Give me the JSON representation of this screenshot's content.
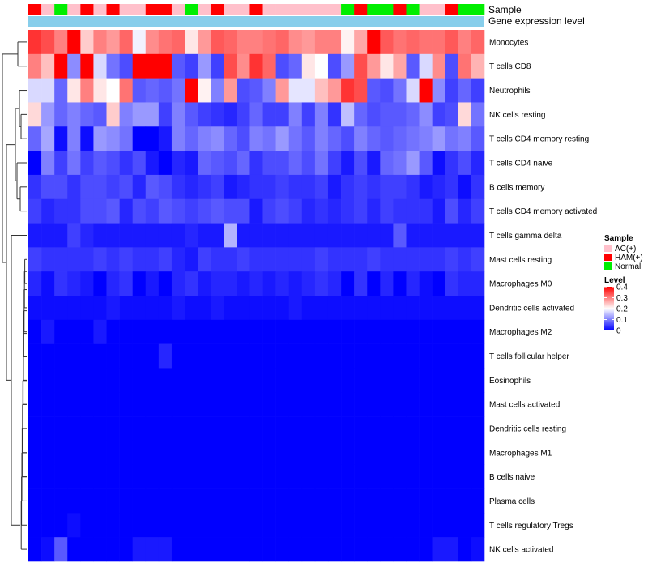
{
  "chart_data": {
    "type": "heatmap",
    "sample_label": "Sample",
    "gene_label": "Gene expression level",
    "rows": [
      "Monocytes",
      "T cells CD8",
      "Neutrophils",
      "NK cells resting",
      "T cells CD4 memory resting",
      "T cells CD4 naive",
      "B cells memory",
      "T cells CD4 memory activated",
      "T cells gamma delta",
      "Mast cells resting",
      "Macrophages M0",
      "Dendritic cells activated",
      "Macrophages M2",
      "T cells follicular helper",
      "Eosinophils",
      "Mast cells activated",
      "Dendritic cells resting",
      "Macrophages M1",
      "B cells naive",
      "Plasma cells",
      "T cells regulatory  Tregs",
      "NK cells activated"
    ],
    "samples": [
      "HAM(+)",
      "AC(+)",
      "Normal",
      "AC(+)",
      "HAM(+)",
      "AC(+)",
      "HAM(+)",
      "AC(+)",
      "AC(+)",
      "HAM(+)",
      "HAM(+)",
      "AC(+)",
      "Normal",
      "AC(+)",
      "HAM(+)",
      "AC(+)",
      "AC(+)",
      "HAM(+)",
      "AC(+)",
      "AC(+)",
      "AC(+)",
      "AC(+)",
      "AC(+)",
      "AC(+)",
      "Normal",
      "HAM(+)",
      "Normal",
      "Normal",
      "HAM(+)",
      "Normal",
      "AC(+)",
      "AC(+)",
      "HAM(+)",
      "Normal",
      "Normal"
    ],
    "values": [
      [
        0.36,
        0.34,
        0.3,
        0.4,
        0.24,
        0.3,
        0.28,
        0.32,
        0.19,
        0.29,
        0.31,
        0.32,
        0.22,
        0.28,
        0.33,
        0.32,
        0.3,
        0.3,
        0.31,
        0.32,
        0.29,
        0.28,
        0.3,
        0.3,
        0.21,
        0.27,
        0.4,
        0.33,
        0.31,
        0.32,
        0.31,
        0.31,
        0.33,
        0.3,
        0.32
      ],
      [
        0.3,
        0.25,
        0.4,
        0.11,
        0.4,
        0.17,
        0.09,
        0.06,
        0.4,
        0.4,
        0.4,
        0.07,
        0.05,
        0.12,
        0.05,
        0.34,
        0.29,
        0.36,
        0.32,
        0.06,
        0.08,
        0.22,
        0.2,
        0.06,
        0.12,
        0.34,
        0.28,
        0.22,
        0.27,
        0.07,
        0.17,
        0.29,
        0.06,
        0.31,
        0.26
      ],
      [
        0.17,
        0.17,
        0.08,
        0.22,
        0.3,
        0.22,
        0.2,
        0.31,
        0.07,
        0.08,
        0.07,
        0.09,
        0.4,
        0.21,
        0.1,
        0.28,
        0.06,
        0.07,
        0.1,
        0.28,
        0.18,
        0.18,
        0.25,
        0.28,
        0.36,
        0.34,
        0.07,
        0.06,
        0.09,
        0.17,
        0.4,
        0.11,
        0.05,
        0.08,
        0.05
      ],
      [
        0.23,
        0.12,
        0.08,
        0.1,
        0.08,
        0.07,
        0.24,
        0.1,
        0.12,
        0.12,
        0.05,
        0.1,
        0.07,
        0.05,
        0.04,
        0.03,
        0.05,
        0.08,
        0.05,
        0.05,
        0.1,
        0.05,
        0.1,
        0.04,
        0.15,
        0.08,
        0.06,
        0.07,
        0.07,
        0.08,
        0.11,
        0.05,
        0.06,
        0.23,
        0.09
      ],
      [
        0.08,
        0.13,
        0.01,
        0.1,
        0.01,
        0.12,
        0.11,
        0.09,
        0.0,
        0.0,
        0.02,
        0.1,
        0.08,
        0.1,
        0.11,
        0.08,
        0.06,
        0.1,
        0.09,
        0.12,
        0.09,
        0.07,
        0.1,
        0.08,
        0.06,
        0.1,
        0.08,
        0.07,
        0.08,
        0.09,
        0.1,
        0.12,
        0.09,
        0.1,
        0.07
      ],
      [
        0.0,
        0.1,
        0.05,
        0.09,
        0.05,
        0.07,
        0.06,
        0.04,
        0.06,
        0.02,
        0.0,
        0.03,
        0.02,
        0.08,
        0.07,
        0.06,
        0.08,
        0.04,
        0.06,
        0.06,
        0.08,
        0.06,
        0.09,
        0.05,
        0.02,
        0.06,
        0.02,
        0.08,
        0.09,
        0.12,
        0.07,
        0.01,
        0.04,
        0.06,
        0.03
      ],
      [
        0.04,
        0.06,
        0.06,
        0.04,
        0.06,
        0.06,
        0.05,
        0.06,
        0.03,
        0.07,
        0.06,
        0.04,
        0.03,
        0.04,
        0.05,
        0.02,
        0.03,
        0.04,
        0.04,
        0.05,
        0.04,
        0.04,
        0.05,
        0.02,
        0.04,
        0.05,
        0.04,
        0.05,
        0.05,
        0.04,
        0.02,
        0.03,
        0.04,
        0.01,
        0.04
      ],
      [
        0.05,
        0.03,
        0.04,
        0.04,
        0.06,
        0.06,
        0.07,
        0.03,
        0.06,
        0.05,
        0.07,
        0.06,
        0.05,
        0.06,
        0.07,
        0.06,
        0.06,
        0.02,
        0.05,
        0.06,
        0.05,
        0.03,
        0.04,
        0.03,
        0.04,
        0.05,
        0.03,
        0.05,
        0.04,
        0.04,
        0.04,
        0.02,
        0.06,
        0.03,
        0.05
      ],
      [
        0.02,
        0.02,
        0.02,
        0.05,
        0.03,
        0.02,
        0.02,
        0.02,
        0.02,
        0.02,
        0.02,
        0.02,
        0.03,
        0.02,
        0.02,
        0.14,
        0.02,
        0.02,
        0.02,
        0.02,
        0.02,
        0.02,
        0.02,
        0.02,
        0.02,
        0.02,
        0.02,
        0.02,
        0.07,
        0.02,
        0.02,
        0.02,
        0.02,
        0.02,
        0.02
      ],
      [
        0.05,
        0.04,
        0.04,
        0.04,
        0.04,
        0.05,
        0.04,
        0.05,
        0.04,
        0.04,
        0.05,
        0.03,
        0.02,
        0.05,
        0.04,
        0.04,
        0.05,
        0.04,
        0.04,
        0.04,
        0.04,
        0.04,
        0.05,
        0.04,
        0.04,
        0.04,
        0.05,
        0.04,
        0.04,
        0.04,
        0.04,
        0.04,
        0.05,
        0.04,
        0.05
      ],
      [
        0.03,
        0.01,
        0.04,
        0.03,
        0.02,
        0.0,
        0.03,
        0.04,
        0.0,
        0.02,
        0.0,
        0.03,
        0.04,
        0.02,
        0.03,
        0.03,
        0.02,
        0.03,
        0.02,
        0.03,
        0.02,
        0.03,
        0.04,
        0.03,
        0.0,
        0.04,
        0.0,
        0.03,
        0.0,
        0.03,
        0.01,
        0.0,
        0.04,
        0.03,
        0.03
      ],
      [
        0.01,
        0.01,
        0.01,
        0.01,
        0.01,
        0.01,
        0.02,
        0.01,
        0.01,
        0.01,
        0.01,
        0.02,
        0.01,
        0.01,
        0.02,
        0.01,
        0.01,
        0.01,
        0.01,
        0.01,
        0.02,
        0.01,
        0.01,
        0.01,
        0.01,
        0.01,
        0.01,
        0.01,
        0.01,
        0.01,
        0.01,
        0.01,
        0.01,
        0.01,
        0.01
      ],
      [
        0.0,
        0.02,
        0.0,
        0.0,
        0.0,
        0.02,
        0.0,
        0.0,
        0.0,
        0.0,
        0.0,
        0.0,
        0.0,
        0.0,
        0.0,
        0.0,
        0.0,
        0.0,
        0.0,
        0.0,
        0.0,
        0.0,
        0.0,
        0.0,
        0.0,
        0.0,
        0.0,
        0.0,
        0.0,
        0.0,
        0.0,
        0.0,
        0.0,
        0.0,
        0.0
      ],
      [
        0.0,
        0.0,
        0.0,
        0.0,
        0.0,
        0.0,
        0.0,
        0.0,
        0.0,
        0.0,
        0.03,
        0.0,
        0.0,
        0.0,
        0.0,
        0.0,
        0.0,
        0.0,
        0.0,
        0.0,
        0.0,
        0.0,
        0.0,
        0.0,
        0.0,
        0.0,
        0.0,
        0.0,
        0.0,
        0.0,
        0.0,
        0.0,
        0.0,
        0.0,
        0.0
      ],
      [
        0.0,
        0.0,
        0.0,
        0.0,
        0.0,
        0.0,
        0.0,
        0.0,
        0.0,
        0.0,
        0.0,
        0.0,
        0.0,
        0.0,
        0.0,
        0.0,
        0.0,
        0.0,
        0.0,
        0.0,
        0.0,
        0.0,
        0.0,
        0.0,
        0.0,
        0.0,
        0.0,
        0.0,
        0.0,
        0.0,
        0.0,
        0.0,
        0.0,
        0.0,
        0.0
      ],
      [
        0.0,
        0.0,
        0.0,
        0.0,
        0.0,
        0.0,
        0.0,
        0.0,
        0.0,
        0.0,
        0.0,
        0.0,
        0.0,
        0.0,
        0.0,
        0.0,
        0.0,
        0.0,
        0.0,
        0.0,
        0.0,
        0.0,
        0.0,
        0.0,
        0.0,
        0.0,
        0.0,
        0.0,
        0.0,
        0.0,
        0.0,
        0.0,
        0.0,
        0.0,
        0.0
      ],
      [
        0.0,
        0.0,
        0.0,
        0.0,
        0.0,
        0.0,
        0.0,
        0.0,
        0.0,
        0.0,
        0.0,
        0.0,
        0.0,
        0.0,
        0.0,
        0.0,
        0.0,
        0.0,
        0.0,
        0.0,
        0.0,
        0.0,
        0.0,
        0.0,
        0.0,
        0.0,
        0.0,
        0.0,
        0.0,
        0.0,
        0.0,
        0.0,
        0.0,
        0.0,
        0.0
      ],
      [
        0.0,
        0.0,
        0.0,
        0.0,
        0.0,
        0.0,
        0.0,
        0.0,
        0.0,
        0.0,
        0.0,
        0.0,
        0.0,
        0.0,
        0.0,
        0.0,
        0.0,
        0.0,
        0.0,
        0.0,
        0.0,
        0.0,
        0.0,
        0.0,
        0.0,
        0.0,
        0.0,
        0.0,
        0.0,
        0.0,
        0.0,
        0.0,
        0.0,
        0.0,
        0.0
      ],
      [
        0.0,
        0.0,
        0.0,
        0.0,
        0.0,
        0.0,
        0.0,
        0.0,
        0.0,
        0.0,
        0.0,
        0.0,
        0.0,
        0.0,
        0.0,
        0.0,
        0.0,
        0.0,
        0.0,
        0.0,
        0.0,
        0.0,
        0.0,
        0.0,
        0.0,
        0.0,
        0.0,
        0.0,
        0.0,
        0.0,
        0.0,
        0.0,
        0.0,
        0.0,
        0.0
      ],
      [
        0.0,
        0.0,
        0.0,
        0.0,
        0.0,
        0.0,
        0.0,
        0.0,
        0.0,
        0.0,
        0.0,
        0.0,
        0.0,
        0.0,
        0.0,
        0.0,
        0.0,
        0.0,
        0.0,
        0.0,
        0.0,
        0.0,
        0.0,
        0.0,
        0.0,
        0.0,
        0.0,
        0.0,
        0.0,
        0.0,
        0.0,
        0.0,
        0.0,
        0.0,
        0.0
      ],
      [
        0.0,
        0.0,
        0.0,
        0.01,
        0.0,
        0.0,
        0.0,
        0.0,
        0.0,
        0.0,
        0.0,
        0.0,
        0.0,
        0.0,
        0.0,
        0.0,
        0.0,
        0.0,
        0.0,
        0.0,
        0.0,
        0.0,
        0.0,
        0.0,
        0.0,
        0.0,
        0.0,
        0.0,
        0.0,
        0.0,
        0.0,
        0.0,
        0.0,
        0.0,
        0.0
      ],
      [
        0.0,
        0.01,
        0.07,
        0.0,
        0.0,
        0.0,
        0.0,
        0.0,
        0.02,
        0.02,
        0.02,
        0.0,
        0.0,
        0.0,
        0.0,
        0.0,
        0.0,
        0.0,
        0.0,
        0.0,
        0.0,
        0.0,
        0.0,
        0.0,
        0.0,
        0.0,
        0.0,
        0.0,
        0.0,
        0.0,
        0.0,
        0.02,
        0.02,
        0.0,
        0.01
      ]
    ],
    "scale": {
      "min": 0,
      "max": 0.4,
      "low": "#0000ff",
      "mid": "#ffffff",
      "high": "#ff0000"
    },
    "legend_sample": {
      "title": "Sample",
      "items": [
        {
          "label": "AC(+)",
          "color": "#ffc0cb"
        },
        {
          "label": "HAM(+)",
          "color": "#ff0000"
        },
        {
          "label": "Normal",
          "color": "#00ee00"
        }
      ]
    },
    "legend_level": {
      "title": "Level",
      "ticks": [
        "0.4",
        "0.3",
        "0.2",
        "0.1",
        "0"
      ],
      "tick_values": [
        0.4,
        0.3,
        0.2,
        0.1,
        0
      ]
    },
    "gene_bar_color": "#87ceeb"
  }
}
